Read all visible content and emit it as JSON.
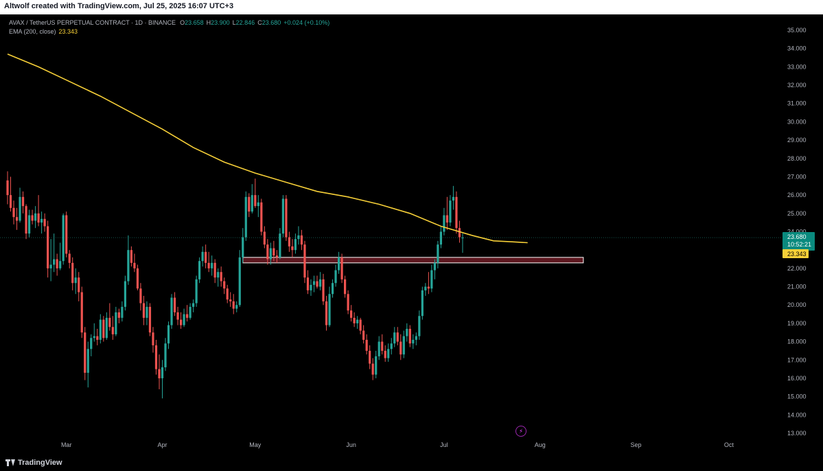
{
  "header": {
    "attribution": "Altwolf created with TradingView.com, Jul 25, 2025 16:07 UTC+3"
  },
  "legend": {
    "symbol": "AVAX / TetherUS PERPETUAL CONTRACT · 1D · BINANCE",
    "o_label": "O",
    "o_value": "23.658",
    "h_label": "H",
    "h_value": "23.900",
    "l_label": "L",
    "l_value": "22.846",
    "c_label": "C",
    "c_value": "23.680",
    "change": "+0.024 (+0.10%)",
    "ema_label": "EMA (200, close)",
    "ema_value": "23.343"
  },
  "footer": {
    "brand": "TradingView"
  },
  "colors": {
    "up": "#26a69a",
    "down": "#ef5350",
    "ema": "#f7d038",
    "zone_fill": "#7b1f2a",
    "zone_border": "#ffffff",
    "background": "#000000"
  },
  "chart_data": {
    "type": "candlestick",
    "ylim": [
      12.6,
      35.4
    ],
    "y_ticks": [
      "13.000",
      "14.000",
      "15.000",
      "16.000",
      "17.000",
      "18.000",
      "19.000",
      "20.000",
      "21.000",
      "22.000",
      "23.000",
      "24.000",
      "25.000",
      "26.000",
      "27.000",
      "28.000",
      "29.000",
      "30.000",
      "31.000",
      "32.000",
      "33.000",
      "34.000",
      "35.000"
    ],
    "x_labels": [
      {
        "label": "Mar",
        "day": 19
      },
      {
        "label": "Apr",
        "day": 50
      },
      {
        "label": "May",
        "day": 80
      },
      {
        "label": "Jun",
        "day": 111
      },
      {
        "label": "Jul",
        "day": 141
      },
      {
        "label": "Aug",
        "day": 172
      },
      {
        "label": "Sep",
        "day": 203
      },
      {
        "label": "Oct",
        "day": 233
      }
    ],
    "last_price": "23.680",
    "countdown": "10:52:21",
    "ema_value": "23.343",
    "support_zone": {
      "low": 22.3,
      "high": 22.6,
      "from_day": 76,
      "to_day": 186
    },
    "ema": [
      [
        0,
        33.7
      ],
      [
        10,
        33.0
      ],
      [
        20,
        32.2
      ],
      [
        30,
        31.4
      ],
      [
        40,
        30.5
      ],
      [
        50,
        29.6
      ],
      [
        60,
        28.6
      ],
      [
        70,
        27.8
      ],
      [
        80,
        27.2
      ],
      [
        90,
        26.7
      ],
      [
        100,
        26.2
      ],
      [
        110,
        25.9
      ],
      [
        120,
        25.5
      ],
      [
        130,
        25.0
      ],
      [
        140,
        24.3
      ],
      [
        150,
        23.8
      ],
      [
        157,
        23.5
      ],
      [
        163,
        23.45
      ],
      [
        168,
        23.4
      ]
    ],
    "candles": [
      {
        "o": 26.8,
        "h": 27.3,
        "l": 25.5,
        "c": 26.0
      },
      {
        "o": 26.0,
        "h": 27.0,
        "l": 25.1,
        "c": 25.3
      },
      {
        "o": 25.3,
        "h": 25.7,
        "l": 24.4,
        "c": 24.8
      },
      {
        "o": 24.8,
        "h": 25.3,
        "l": 24.1,
        "c": 24.6
      },
      {
        "o": 24.6,
        "h": 26.4,
        "l": 24.5,
        "c": 25.9
      },
      {
        "o": 25.9,
        "h": 26.2,
        "l": 25.0,
        "c": 25.4
      },
      {
        "o": 25.4,
        "h": 25.5,
        "l": 23.6,
        "c": 23.9
      },
      {
        "o": 23.9,
        "h": 25.2,
        "l": 23.7,
        "c": 24.9
      },
      {
        "o": 24.9,
        "h": 25.2,
        "l": 24.4,
        "c": 24.6
      },
      {
        "o": 24.6,
        "h": 25.4,
        "l": 24.2,
        "c": 25.0
      },
      {
        "o": 25.0,
        "h": 26.0,
        "l": 24.3,
        "c": 24.5
      },
      {
        "o": 24.5,
        "h": 25.1,
        "l": 23.9,
        "c": 24.7
      },
      {
        "o": 24.7,
        "h": 25.0,
        "l": 24.0,
        "c": 24.3
      },
      {
        "o": 24.3,
        "h": 24.6,
        "l": 21.5,
        "c": 22.0
      },
      {
        "o": 22.0,
        "h": 23.6,
        "l": 21.3,
        "c": 22.2
      },
      {
        "o": 22.2,
        "h": 23.9,
        "l": 21.8,
        "c": 22.5
      },
      {
        "o": 22.5,
        "h": 22.8,
        "l": 21.6,
        "c": 22.0
      },
      {
        "o": 22.0,
        "h": 23.4,
        "l": 21.9,
        "c": 22.4
      },
      {
        "o": 22.4,
        "h": 25.0,
        "l": 22.2,
        "c": 24.9
      },
      {
        "o": 24.9,
        "h": 25.1,
        "l": 22.6,
        "c": 22.8
      },
      {
        "o": 22.8,
        "h": 23.0,
        "l": 22.0,
        "c": 22.3
      },
      {
        "o": 22.3,
        "h": 22.6,
        "l": 20.8,
        "c": 21.2
      },
      {
        "o": 21.2,
        "h": 22.0,
        "l": 20.6,
        "c": 21.5
      },
      {
        "o": 21.5,
        "h": 21.8,
        "l": 20.2,
        "c": 20.7
      },
      {
        "o": 20.7,
        "h": 21.0,
        "l": 18.2,
        "c": 18.5
      },
      {
        "o": 18.5,
        "h": 18.8,
        "l": 15.9,
        "c": 16.3
      },
      {
        "o": 16.3,
        "h": 18.0,
        "l": 15.5,
        "c": 17.6
      },
      {
        "o": 17.6,
        "h": 18.4,
        "l": 17.2,
        "c": 18.2
      },
      {
        "o": 18.2,
        "h": 19.0,
        "l": 18.0,
        "c": 18.3
      },
      {
        "o": 18.3,
        "h": 18.7,
        "l": 17.8,
        "c": 18.1
      },
      {
        "o": 18.1,
        "h": 19.5,
        "l": 17.9,
        "c": 19.2
      },
      {
        "o": 19.2,
        "h": 19.4,
        "l": 18.0,
        "c": 18.2
      },
      {
        "o": 18.2,
        "h": 19.6,
        "l": 18.1,
        "c": 19.3
      },
      {
        "o": 19.3,
        "h": 20.1,
        "l": 18.6,
        "c": 18.8
      },
      {
        "o": 18.8,
        "h": 19.4,
        "l": 18.1,
        "c": 18.4
      },
      {
        "o": 18.4,
        "h": 19.9,
        "l": 18.3,
        "c": 19.6
      },
      {
        "o": 19.6,
        "h": 19.8,
        "l": 19.0,
        "c": 19.3
      },
      {
        "o": 19.3,
        "h": 20.2,
        "l": 19.1,
        "c": 19.9
      },
      {
        "o": 19.9,
        "h": 21.6,
        "l": 19.7,
        "c": 21.3
      },
      {
        "o": 21.3,
        "h": 23.8,
        "l": 21.1,
        "c": 23.0
      },
      {
        "o": 23.0,
        "h": 23.2,
        "l": 22.1,
        "c": 22.3
      },
      {
        "o": 22.3,
        "h": 22.8,
        "l": 21.8,
        "c": 22.0
      },
      {
        "o": 22.0,
        "h": 22.2,
        "l": 20.8,
        "c": 20.9
      },
      {
        "o": 20.9,
        "h": 21.2,
        "l": 19.7,
        "c": 20.1
      },
      {
        "o": 20.1,
        "h": 20.5,
        "l": 18.9,
        "c": 19.3
      },
      {
        "o": 19.3,
        "h": 20.2,
        "l": 18.9,
        "c": 19.9
      },
      {
        "o": 19.9,
        "h": 20.1,
        "l": 18.3,
        "c": 18.5
      },
      {
        "o": 18.5,
        "h": 18.8,
        "l": 17.4,
        "c": 17.8
      },
      {
        "o": 17.8,
        "h": 18.1,
        "l": 16.2,
        "c": 16.5
      },
      {
        "o": 16.5,
        "h": 17.3,
        "l": 15.4,
        "c": 16.0
      },
      {
        "o": 16.0,
        "h": 17.0,
        "l": 14.9,
        "c": 16.6
      },
      {
        "o": 16.6,
        "h": 18.2,
        "l": 16.4,
        "c": 17.9
      },
      {
        "o": 17.9,
        "h": 19.1,
        "l": 17.6,
        "c": 18.9
      },
      {
        "o": 18.9,
        "h": 20.6,
        "l": 18.7,
        "c": 20.4
      },
      {
        "o": 20.4,
        "h": 20.7,
        "l": 19.4,
        "c": 19.6
      },
      {
        "o": 19.6,
        "h": 19.9,
        "l": 18.9,
        "c": 19.2
      },
      {
        "o": 19.2,
        "h": 19.6,
        "l": 18.7,
        "c": 18.9
      },
      {
        "o": 18.9,
        "h": 19.8,
        "l": 18.8,
        "c": 19.5
      },
      {
        "o": 19.5,
        "h": 20.0,
        "l": 19.1,
        "c": 19.3
      },
      {
        "o": 19.3,
        "h": 20.1,
        "l": 19.2,
        "c": 19.9
      },
      {
        "o": 19.9,
        "h": 20.3,
        "l": 19.6,
        "c": 20.1
      },
      {
        "o": 20.1,
        "h": 21.6,
        "l": 19.9,
        "c": 21.4
      },
      {
        "o": 21.4,
        "h": 22.6,
        "l": 21.2,
        "c": 22.4
      },
      {
        "o": 22.4,
        "h": 23.2,
        "l": 22.1,
        "c": 22.9
      },
      {
        "o": 22.9,
        "h": 23.3,
        "l": 22.0,
        "c": 22.3
      },
      {
        "o": 22.3,
        "h": 22.9,
        "l": 21.8,
        "c": 22.0
      },
      {
        "o": 22.0,
        "h": 22.7,
        "l": 21.6,
        "c": 22.3
      },
      {
        "o": 22.3,
        "h": 22.5,
        "l": 21.2,
        "c": 21.5
      },
      {
        "o": 21.5,
        "h": 22.0,
        "l": 21.0,
        "c": 21.8
      },
      {
        "o": 21.8,
        "h": 22.1,
        "l": 21.0,
        "c": 21.3
      },
      {
        "o": 21.3,
        "h": 21.5,
        "l": 20.6,
        "c": 20.9
      },
      {
        "o": 20.9,
        "h": 21.1,
        "l": 20.1,
        "c": 20.3
      },
      {
        "o": 20.3,
        "h": 20.7,
        "l": 19.9,
        "c": 20.2
      },
      {
        "o": 20.2,
        "h": 20.6,
        "l": 19.5,
        "c": 19.8
      },
      {
        "o": 19.8,
        "h": 20.2,
        "l": 19.6,
        "c": 20.0
      },
      {
        "o": 20.0,
        "h": 23.0,
        "l": 19.9,
        "c": 22.6
      },
      {
        "o": 22.6,
        "h": 24.2,
        "l": 22.3,
        "c": 23.7
      },
      {
        "o": 23.7,
        "h": 26.2,
        "l": 23.5,
        "c": 25.9
      },
      {
        "o": 25.9,
        "h": 26.1,
        "l": 24.8,
        "c": 25.1
      },
      {
        "o": 25.1,
        "h": 26.6,
        "l": 25.0,
        "c": 26.0
      },
      {
        "o": 26.0,
        "h": 26.9,
        "l": 25.3,
        "c": 25.4
      },
      {
        "o": 25.4,
        "h": 26.0,
        "l": 24.8,
        "c": 25.6
      },
      {
        "o": 25.6,
        "h": 25.8,
        "l": 23.8,
        "c": 24.0
      },
      {
        "o": 24.0,
        "h": 24.3,
        "l": 23.1,
        "c": 23.3
      },
      {
        "o": 23.3,
        "h": 23.6,
        "l": 22.2,
        "c": 22.5
      },
      {
        "o": 22.5,
        "h": 23.4,
        "l": 22.2,
        "c": 23.1
      },
      {
        "o": 23.1,
        "h": 23.5,
        "l": 22.4,
        "c": 22.7
      },
      {
        "o": 22.7,
        "h": 23.0,
        "l": 22.3,
        "c": 22.6
      },
      {
        "o": 22.6,
        "h": 24.2,
        "l": 22.5,
        "c": 23.9
      },
      {
        "o": 23.9,
        "h": 26.0,
        "l": 23.7,
        "c": 25.8
      },
      {
        "o": 25.8,
        "h": 26.0,
        "l": 23.5,
        "c": 23.7
      },
      {
        "o": 23.7,
        "h": 24.0,
        "l": 22.9,
        "c": 23.2
      },
      {
        "o": 23.2,
        "h": 23.6,
        "l": 22.6,
        "c": 23.0
      },
      {
        "o": 23.0,
        "h": 23.9,
        "l": 22.8,
        "c": 23.6
      },
      {
        "o": 23.6,
        "h": 24.3,
        "l": 23.3,
        "c": 23.8
      },
      {
        "o": 23.8,
        "h": 24.1,
        "l": 23.0,
        "c": 23.3
      },
      {
        "o": 23.3,
        "h": 23.5,
        "l": 21.2,
        "c": 21.5
      },
      {
        "o": 21.5,
        "h": 21.9,
        "l": 20.6,
        "c": 20.8
      },
      {
        "o": 20.8,
        "h": 21.4,
        "l": 20.5,
        "c": 21.1
      },
      {
        "o": 21.1,
        "h": 21.6,
        "l": 20.7,
        "c": 21.3
      },
      {
        "o": 21.3,
        "h": 21.6,
        "l": 20.9,
        "c": 21.0
      },
      {
        "o": 21.0,
        "h": 21.8,
        "l": 20.8,
        "c": 21.4
      },
      {
        "o": 21.4,
        "h": 21.7,
        "l": 20.0,
        "c": 20.2
      },
      {
        "o": 20.2,
        "h": 20.5,
        "l": 18.6,
        "c": 18.9
      },
      {
        "o": 18.9,
        "h": 21.0,
        "l": 18.8,
        "c": 20.6
      },
      {
        "o": 20.6,
        "h": 21.4,
        "l": 20.4,
        "c": 21.2
      },
      {
        "o": 21.2,
        "h": 22.2,
        "l": 21.0,
        "c": 21.9
      },
      {
        "o": 21.9,
        "h": 22.9,
        "l": 21.7,
        "c": 22.6
      },
      {
        "o": 22.6,
        "h": 22.8,
        "l": 21.2,
        "c": 21.4
      },
      {
        "o": 21.4,
        "h": 21.6,
        "l": 20.4,
        "c": 20.6
      },
      {
        "o": 20.6,
        "h": 20.8,
        "l": 19.5,
        "c": 19.7
      },
      {
        "o": 19.7,
        "h": 20.0,
        "l": 19.1,
        "c": 19.3
      },
      {
        "o": 19.3,
        "h": 19.6,
        "l": 18.8,
        "c": 19.0
      },
      {
        "o": 19.0,
        "h": 19.4,
        "l": 18.7,
        "c": 19.2
      },
      {
        "o": 19.2,
        "h": 19.3,
        "l": 18.4,
        "c": 18.6
      },
      {
        "o": 18.6,
        "h": 18.9,
        "l": 17.9,
        "c": 18.1
      },
      {
        "o": 18.1,
        "h": 18.4,
        "l": 17.3,
        "c": 17.5
      },
      {
        "o": 17.5,
        "h": 17.8,
        "l": 16.5,
        "c": 16.8
      },
      {
        "o": 16.8,
        "h": 17.1,
        "l": 15.9,
        "c": 16.2
      },
      {
        "o": 16.2,
        "h": 17.5,
        "l": 16.0,
        "c": 17.2
      },
      {
        "o": 17.2,
        "h": 18.3,
        "l": 17.0,
        "c": 18.0
      },
      {
        "o": 18.0,
        "h": 18.4,
        "l": 17.3,
        "c": 17.5
      },
      {
        "o": 17.5,
        "h": 17.8,
        "l": 16.9,
        "c": 17.1
      },
      {
        "o": 17.1,
        "h": 17.9,
        "l": 16.9,
        "c": 17.6
      },
      {
        "o": 17.6,
        "h": 18.2,
        "l": 17.3,
        "c": 17.9
      },
      {
        "o": 17.9,
        "h": 18.8,
        "l": 17.7,
        "c": 18.5
      },
      {
        "o": 18.5,
        "h": 18.8,
        "l": 17.8,
        "c": 18.0
      },
      {
        "o": 18.0,
        "h": 18.4,
        "l": 17.0,
        "c": 17.3
      },
      {
        "o": 17.3,
        "h": 18.6,
        "l": 17.1,
        "c": 18.3
      },
      {
        "o": 18.3,
        "h": 19.0,
        "l": 18.0,
        "c": 18.7
      },
      {
        "o": 18.7,
        "h": 18.9,
        "l": 17.7,
        "c": 17.9
      },
      {
        "o": 17.9,
        "h": 18.4,
        "l": 17.6,
        "c": 18.1
      },
      {
        "o": 18.1,
        "h": 18.5,
        "l": 17.8,
        "c": 18.3
      },
      {
        "o": 18.3,
        "h": 19.7,
        "l": 18.1,
        "c": 19.4
      },
      {
        "o": 19.4,
        "h": 21.0,
        "l": 19.2,
        "c": 20.8
      },
      {
        "o": 20.8,
        "h": 21.2,
        "l": 20.5,
        "c": 21.0
      },
      {
        "o": 21.0,
        "h": 21.8,
        "l": 20.6,
        "c": 20.9
      },
      {
        "o": 20.9,
        "h": 22.2,
        "l": 20.7,
        "c": 21.9
      },
      {
        "o": 21.9,
        "h": 22.5,
        "l": 21.4,
        "c": 22.3
      },
      {
        "o": 22.3,
        "h": 23.5,
        "l": 22.0,
        "c": 23.3
      },
      {
        "o": 23.3,
        "h": 24.3,
        "l": 23.1,
        "c": 24.0
      },
      {
        "o": 24.0,
        "h": 25.3,
        "l": 23.8,
        "c": 24.9
      },
      {
        "o": 24.9,
        "h": 25.9,
        "l": 24.1,
        "c": 24.5
      },
      {
        "o": 24.5,
        "h": 26.0,
        "l": 24.3,
        "c": 25.7
      },
      {
        "o": 25.7,
        "h": 26.5,
        "l": 25.2,
        "c": 25.9
      },
      {
        "o": 25.9,
        "h": 26.2,
        "l": 23.9,
        "c": 24.2
      },
      {
        "o": 24.2,
        "h": 24.6,
        "l": 23.4,
        "c": 23.7
      },
      {
        "o": 23.658,
        "h": 23.9,
        "l": 22.846,
        "c": 23.68
      }
    ]
  }
}
